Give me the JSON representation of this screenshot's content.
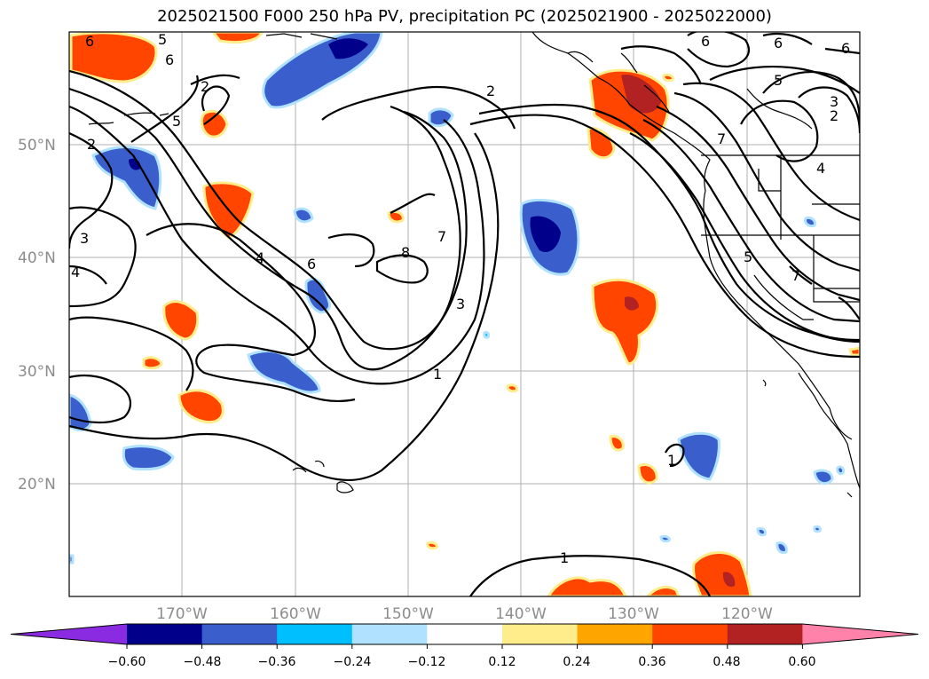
{
  "title": "2025021500 F000 250 hPa PV, precipitation PC (2025021900 - 2025022000)",
  "lon_labels": [
    "170°W",
    "160°W",
    "150°W",
    "140°W",
    "130°W",
    "120°W"
  ],
  "lat_labels": [
    "50°N",
    "40°N",
    "30°N",
    "20°N"
  ],
  "contour_labels": [
    "6",
    "5",
    "6",
    "2",
    "5",
    "2",
    "3",
    "4",
    "4",
    "6",
    "8",
    "7",
    "3",
    "1",
    "2",
    "6",
    "6",
    "5",
    "3",
    "2",
    "6",
    "7",
    "4",
    "5",
    "7",
    "1",
    "1"
  ],
  "colorbar": {
    "colors": [
      "#8a2be2",
      "#00008b",
      "#3a5fcd",
      "#00bfff",
      "#b0e2ff",
      "#ffffff",
      "#ffec8b",
      "#ffa500",
      "#ff4500",
      "#b22222",
      "#ff82ab"
    ],
    "ticks": [
      "−0.60",
      "−0.48",
      "−0.36",
      "−0.24",
      "−0.12",
      "0.12",
      "0.24",
      "0.36",
      "0.48",
      "0.60"
    ]
  }
}
